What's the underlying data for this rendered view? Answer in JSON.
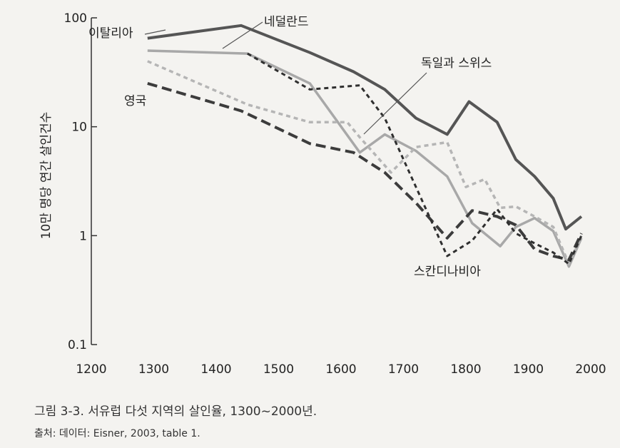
{
  "chart_data": {
    "type": "line",
    "scale_y": "log",
    "xlim": [
      1200,
      2000
    ],
    "ylim": [
      0.1,
      100
    ],
    "x_ticks": [
      1200,
      1300,
      1400,
      1500,
      1600,
      1700,
      1800,
      1900,
      2000
    ],
    "y_ticks": [
      {
        "value": 100,
        "label": "100"
      },
      {
        "value": 10,
        "label": "10"
      },
      {
        "value": 1,
        "label": "1"
      },
      {
        "value": 0.1,
        "label": "0.1"
      }
    ],
    "ylabel": "10만 명당 연간 살인건수",
    "xlabel": "",
    "grid": false,
    "series": [
      {
        "name": "이탈리아",
        "color": "#555555",
        "style": "solid",
        "width": 4,
        "points": [
          [
            1290,
            65
          ],
          [
            1440,
            85
          ],
          [
            1550,
            48
          ],
          [
            1620,
            32
          ],
          [
            1670,
            22
          ],
          [
            1720,
            12
          ],
          [
            1770,
            8.5
          ],
          [
            1805,
            17
          ],
          [
            1850,
            11
          ],
          [
            1880,
            5
          ],
          [
            1910,
            3.5
          ],
          [
            1940,
            2.2
          ],
          [
            1960,
            1.15
          ],
          [
            1985,
            1.5
          ]
        ]
      },
      {
        "name": "네덜란드",
        "color": "#a8a8a8",
        "style": "solid",
        "width": 3.5,
        "points": [
          [
            1290,
            50
          ],
          [
            1450,
            47
          ],
          [
            1550,
            25
          ],
          [
            1630,
            5.8
          ],
          [
            1670,
            8.5
          ],
          [
            1720,
            6
          ],
          [
            1770,
            3.5
          ],
          [
            1810,
            1.3
          ],
          [
            1855,
            0.8
          ],
          [
            1880,
            1.2
          ],
          [
            1910,
            1.45
          ],
          [
            1940,
            1.1
          ],
          [
            1965,
            0.52
          ],
          [
            1985,
            0.95
          ]
        ]
      },
      {
        "name": "독일과 스위스",
        "color": "#b5b5b5",
        "style": "shortdash",
        "width": 3.5,
        "points": [
          [
            1290,
            40
          ],
          [
            1450,
            16
          ],
          [
            1550,
            11
          ],
          [
            1610,
            11
          ],
          [
            1630,
            8
          ],
          [
            1680,
            3.8
          ],
          [
            1720,
            6.5
          ],
          [
            1770,
            7.2
          ],
          [
            1800,
            2.8
          ],
          [
            1830,
            3.3
          ],
          [
            1855,
            1.8
          ],
          [
            1880,
            1.85
          ],
          [
            1910,
            1.5
          ],
          [
            1940,
            1.2
          ],
          [
            1965,
            0.55
          ],
          [
            1985,
            1.0
          ]
        ]
      },
      {
        "name": "영국",
        "color": "#3c3c3c",
        "style": "longdash",
        "width": 4,
        "points": [
          [
            1290,
            25
          ],
          [
            1440,
            14
          ],
          [
            1550,
            7
          ],
          [
            1620,
            5.8
          ],
          [
            1670,
            3.8
          ],
          [
            1720,
            2.0
          ],
          [
            1770,
            0.95
          ],
          [
            1810,
            1.7
          ],
          [
            1850,
            1.5
          ],
          [
            1880,
            1.25
          ],
          [
            1910,
            0.75
          ],
          [
            1940,
            0.65
          ],
          [
            1965,
            0.6
          ],
          [
            1985,
            1.05
          ]
        ]
      },
      {
        "name": "스칸디나비아",
        "color": "#2f2f2f",
        "style": "shortdash",
        "width": 3,
        "points": [
          [
            1450,
            47
          ],
          [
            1550,
            22
          ],
          [
            1630,
            24
          ],
          [
            1670,
            12
          ],
          [
            1720,
            2.8
          ],
          [
            1770,
            0.65
          ],
          [
            1810,
            0.9
          ],
          [
            1850,
            1.75
          ],
          [
            1880,
            1.05
          ],
          [
            1910,
            0.85
          ],
          [
            1940,
            0.7
          ],
          [
            1965,
            0.55
          ],
          [
            1985,
            1.0
          ]
        ]
      }
    ],
    "labels": {
      "italy": "이탈리아",
      "netherlands": "네덜란드",
      "germany_switzerland": "독일과 스위스",
      "england": "영국",
      "scandinavia": "스칸디나비아"
    }
  },
  "caption": "그림 3-3. 서유럽 다섯 지역의 살인율, 1300~2000년.",
  "source": "출처: 데이터: Eisner, 2003, table 1."
}
